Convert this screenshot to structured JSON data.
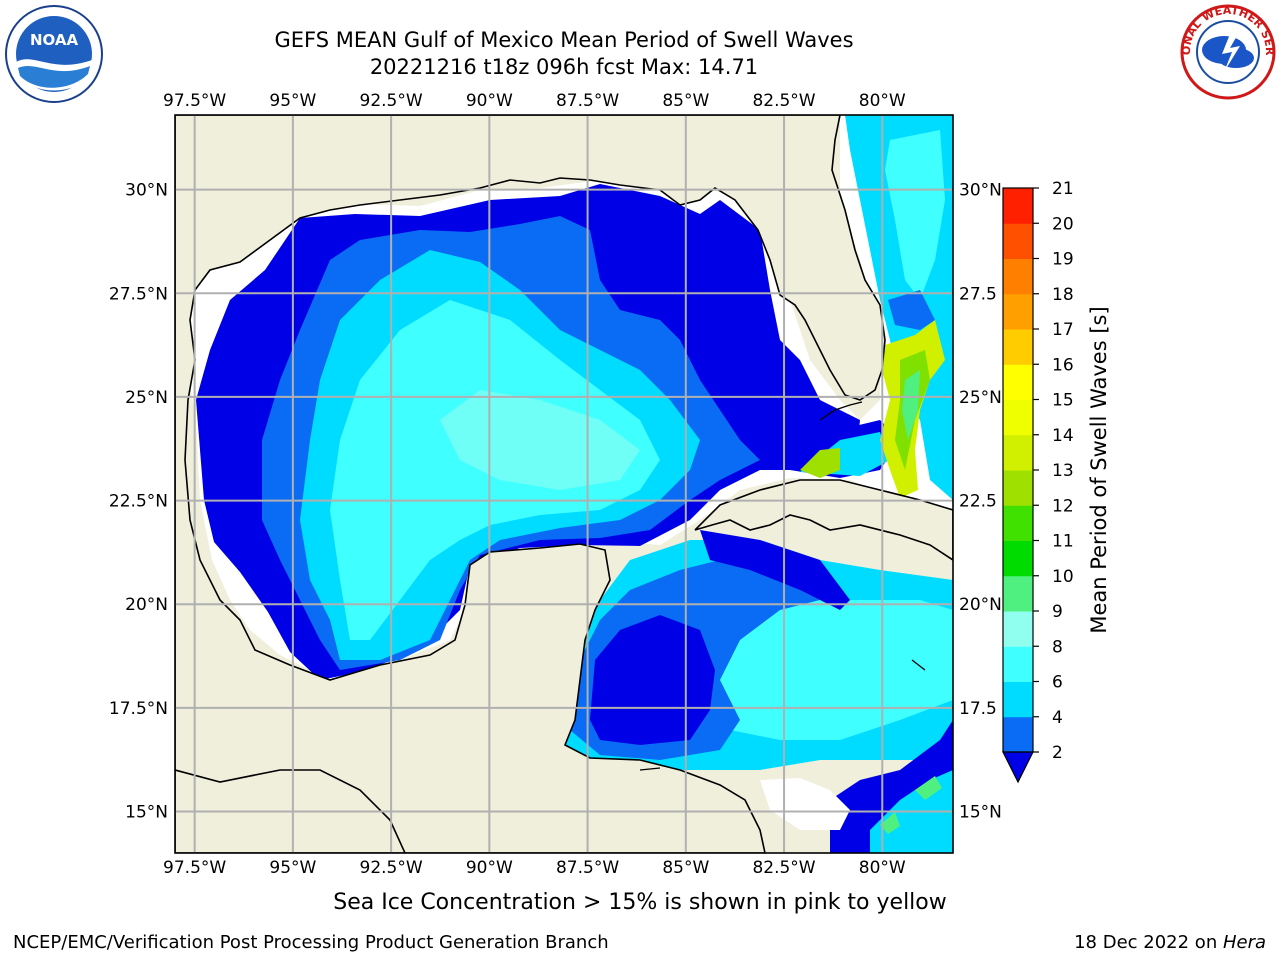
{
  "title": {
    "line1": "GEFS MEAN Gulf of Mexico Mean Period of Swell Waves",
    "line2": "20221216 t18z 096h fcst   Max: 14.71"
  },
  "logos": {
    "left": {
      "icon": "noaa-logo-icon",
      "text": "NOAA"
    },
    "right": {
      "icon": "nws-logo-icon",
      "text": "NATIONAL WEATHER SERVICE"
    }
  },
  "map": {
    "lon_labels": [
      "97.5°W",
      "95°W",
      "92.5°W",
      "90°W",
      "87.5°W",
      "85°W",
      "82.5°W",
      "80°W"
    ],
    "lon_values": [
      -97.5,
      -95,
      -92.5,
      -90,
      -87.5,
      -85,
      -82.5,
      -80
    ],
    "lat_labels_left": [
      "30°N",
      "27.5°N",
      "25°N",
      "22.5°N",
      "20°N",
      "17.5°N",
      "15°N"
    ],
    "lat_labels_right": [
      "30°N",
      "27.5",
      "25°N",
      "22.5",
      "20°N",
      "17.5",
      "15°N"
    ],
    "lat_values": [
      30,
      27.5,
      25,
      22.5,
      20,
      17.5,
      15
    ],
    "extent": {
      "lon_min": -98,
      "lon_max": -78.2,
      "lat_min": 14,
      "lat_max": 31.8
    },
    "colors": {
      "land": "#efefdc",
      "coast": "#000000",
      "grid": "#b0b0b0"
    }
  },
  "colorbar": {
    "label": "Mean Period of Swell Waves [s]",
    "ticks": [
      "2",
      "4",
      "6",
      "8",
      "9",
      "10",
      "11",
      "12",
      "13",
      "14",
      "15",
      "16",
      "17",
      "18",
      "19",
      "20",
      "21"
    ],
    "colors": [
      "#0a6cf5",
      "#00dcff",
      "#40ffff",
      "#90fff0",
      "#50f080",
      "#00dc00",
      "#40e000",
      "#a0e000",
      "#d0f000",
      "#f0ff00",
      "#ffff00",
      "#ffcc00",
      "#ffa000",
      "#ff8000",
      "#ff5000",
      "#ff2000"
    ],
    "extend_color": "#0000e6"
  },
  "footer": {
    "ice_note": "Sea Ice Concentration > 15% is shown in pink to yellow",
    "credit": "NCEP/EMC/Verification Post Processing Product Generation Branch",
    "date": "18 Dec 2022 on ",
    "host": "Hera"
  }
}
